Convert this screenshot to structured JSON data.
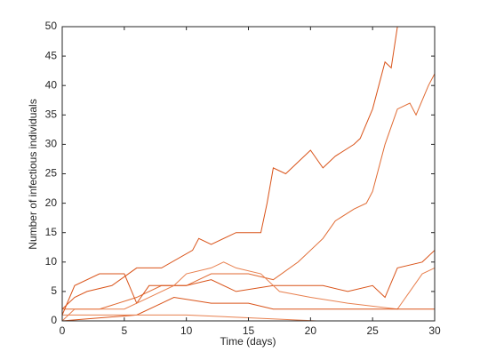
{
  "chart_data": {
    "type": "line",
    "xlabel": "Time (days)",
    "ylabel": "Number of infectious individuals",
    "xlim": [
      0,
      30
    ],
    "ylim": [
      0,
      50
    ],
    "xticks": [
      0,
      5,
      10,
      15,
      20,
      25,
      30
    ],
    "yticks": [
      0,
      5,
      10,
      15,
      20,
      25,
      30,
      35,
      40,
      45,
      50
    ],
    "series": [
      {
        "color": "#d95319",
        "x": [
          0,
          1,
          2,
          4,
          6,
          8,
          10.5,
          11,
          12,
          14,
          16,
          16.5,
          17,
          18,
          19,
          20,
          21,
          22,
          23.5,
          24,
          25,
          26,
          26.5,
          27
        ],
        "values": [
          2,
          4,
          5,
          6,
          9,
          9,
          12,
          14,
          13,
          15,
          15,
          20,
          26,
          25,
          27,
          29,
          26,
          28,
          30,
          31,
          36,
          44,
          43,
          50
        ]
      },
      {
        "color": "#e06a32",
        "x": [
          0,
          3,
          6,
          8,
          10,
          12,
          15,
          17,
          19,
          20,
          21,
          22,
          23.5,
          24.5,
          25,
          26,
          27,
          28,
          28.5,
          29.5,
          30
        ],
        "values": [
          2,
          2,
          4,
          6,
          6,
          8,
          8,
          7,
          10,
          12,
          14,
          17,
          19,
          20,
          22,
          30,
          36,
          37,
          35,
          40,
          42
        ]
      },
      {
        "color": "#d95319",
        "x": [
          0,
          1,
          3,
          5,
          6,
          7,
          10,
          12,
          14,
          17,
          21,
          23,
          25,
          26,
          27,
          29,
          30
        ],
        "values": [
          1,
          6,
          8,
          8,
          3,
          6,
          6,
          7,
          5,
          6,
          6,
          5,
          6,
          4,
          9,
          10,
          12
        ]
      },
      {
        "color": "#e8804f",
        "x": [
          0,
          1,
          5,
          7,
          9,
          10,
          12,
          13,
          14,
          16,
          17.5,
          20,
          23,
          27,
          28,
          29,
          30
        ],
        "values": [
          0,
          2,
          2,
          4,
          6,
          8,
          9,
          10,
          9,
          8,
          5,
          4,
          3,
          2,
          5,
          8,
          9
        ]
      },
      {
        "color": "#d95319",
        "x": [
          0,
          6,
          8,
          9,
          12,
          15,
          17,
          30
        ],
        "values": [
          0,
          1,
          3,
          4,
          3,
          3,
          2,
          2
        ]
      },
      {
        "color": "#e8804f",
        "x": [
          0,
          10,
          20.5
        ],
        "values": [
          1,
          1,
          0
        ]
      }
    ]
  }
}
